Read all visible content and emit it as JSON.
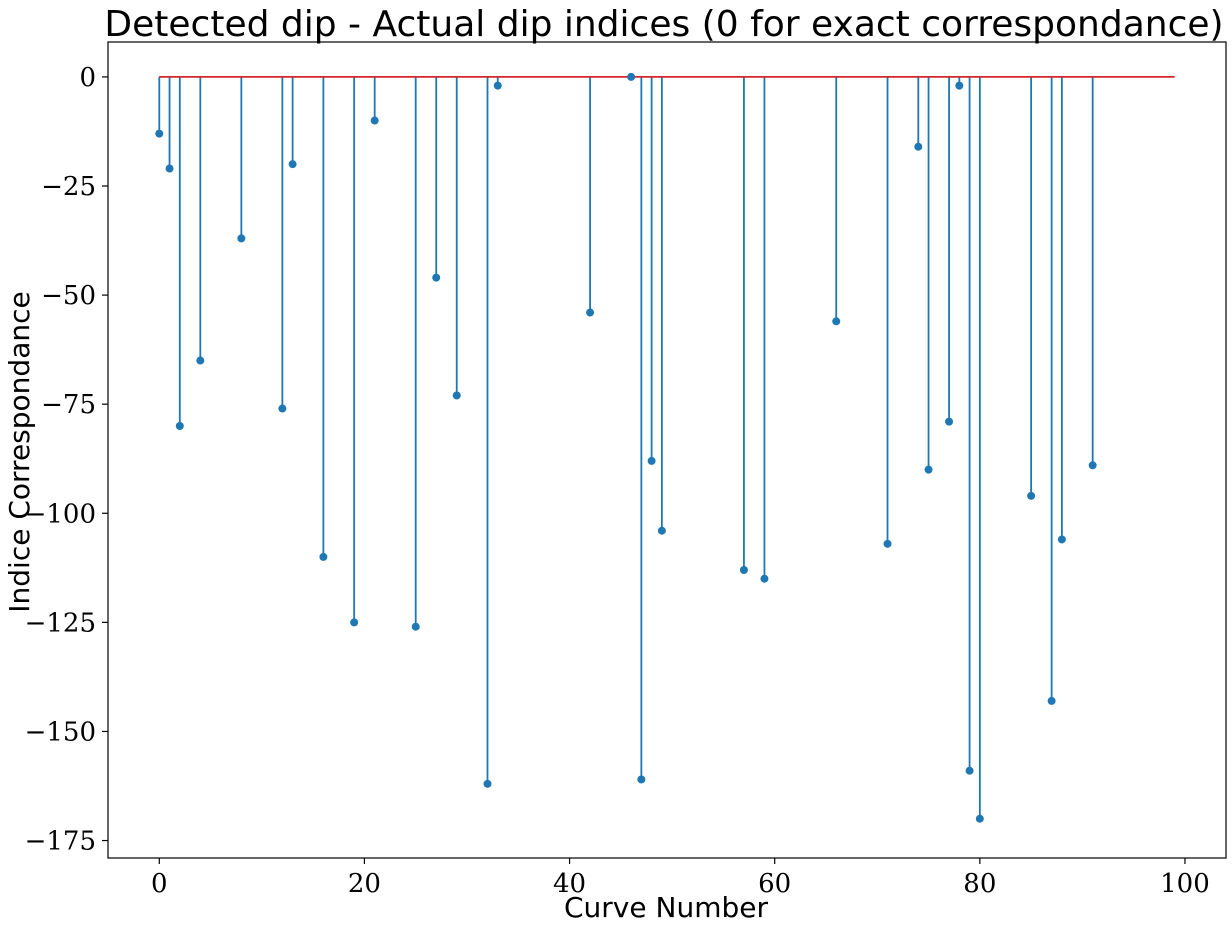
{
  "chart_data": {
    "type": "stem",
    "title": "Detected dip - Actual dip indices (0 for exact correspondance)",
    "xlabel": "Curve Number",
    "ylabel": "Indice Correspondance",
    "xlim": [
      -5,
      104
    ],
    "ylim": [
      -179,
      8
    ],
    "xticks": [
      0,
      20,
      40,
      60,
      80,
      100
    ],
    "xtick_labels": [
      "0",
      "20",
      "40",
      "60",
      "80",
      "100"
    ],
    "yticks": [
      0,
      -25,
      -50,
      -75,
      -100,
      -125,
      -150,
      -175
    ],
    "ytick_labels": [
      "0",
      "−25",
      "−50",
      "−75",
      "−100",
      "−125",
      "−150",
      "−175"
    ],
    "baseline": {
      "y": 0,
      "x_range": [
        0,
        99
      ],
      "color": "#d62728"
    },
    "grid": false,
    "colors": {
      "stem": "#1f77b4",
      "marker": "#1f77b4",
      "baseline": "#d62728"
    },
    "points": [
      {
        "x": 0,
        "y": -13
      },
      {
        "x": 1,
        "y": -21
      },
      {
        "x": 2,
        "y": -80
      },
      {
        "x": 4,
        "y": -65
      },
      {
        "x": 8,
        "y": -37
      },
      {
        "x": 12,
        "y": -76
      },
      {
        "x": 13,
        "y": -20
      },
      {
        "x": 16,
        "y": -110
      },
      {
        "x": 19,
        "y": -125
      },
      {
        "x": 21,
        "y": -10
      },
      {
        "x": 25,
        "y": -126
      },
      {
        "x": 27,
        "y": -46
      },
      {
        "x": 29,
        "y": -73
      },
      {
        "x": 32,
        "y": -162
      },
      {
        "x": 33,
        "y": -2
      },
      {
        "x": 42,
        "y": -54
      },
      {
        "x": 46,
        "y": 0
      },
      {
        "x": 47,
        "y": -161
      },
      {
        "x": 48,
        "y": -88
      },
      {
        "x": 49,
        "y": -104
      },
      {
        "x": 57,
        "y": -113
      },
      {
        "x": 59,
        "y": -115
      },
      {
        "x": 66,
        "y": -56
      },
      {
        "x": 71,
        "y": -107
      },
      {
        "x": 74,
        "y": -16
      },
      {
        "x": 75,
        "y": -90
      },
      {
        "x": 77,
        "y": -79
      },
      {
        "x": 78,
        "y": -2
      },
      {
        "x": 79,
        "y": -159
      },
      {
        "x": 80,
        "y": -170
      },
      {
        "x": 85,
        "y": -96
      },
      {
        "x": 87,
        "y": -143
      },
      {
        "x": 88,
        "y": -106
      },
      {
        "x": 91,
        "y": -89
      }
    ]
  }
}
